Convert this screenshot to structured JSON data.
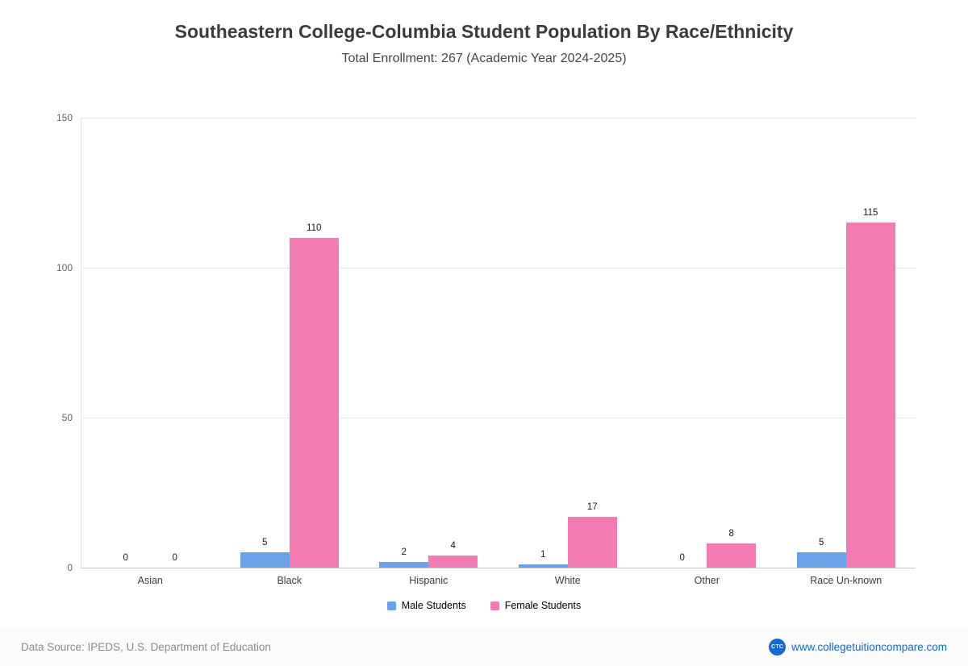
{
  "header": {
    "title": "Southeastern College-Columbia Student Population By Race/Ethnicity",
    "subtitle": "Total Enrollment: 267 (Academic Year 2024-2025)"
  },
  "chart_data": {
    "type": "bar",
    "title": "Southeastern College-Columbia Student Population By Race/Ethnicity",
    "subtitle": "Total Enrollment: 267 (Academic Year 2024-2025)",
    "categories": [
      "Asian",
      "Black",
      "Hispanic",
      "White",
      "Other",
      "Race Un-known"
    ],
    "series": [
      {
        "name": "Male Students",
        "color": "#6ba1e8",
        "values": [
          0,
          5,
          2,
          1,
          0,
          5
        ]
      },
      {
        "name": "Female Students",
        "color": "#f27cb2",
        "values": [
          0,
          110,
          4,
          17,
          8,
          115
        ]
      }
    ],
    "xlabel": "",
    "ylabel": "",
    "ylim": [
      0,
      150
    ],
    "yticks": [
      0,
      50,
      100,
      150
    ],
    "grid": true,
    "legend_position": "bottom",
    "value_labels": true
  },
  "footer": {
    "data_source": "Data Source: IPEDS, U.S. Department of Education",
    "website": "www.collegetuitioncompare.com",
    "logo_text": "CTC"
  }
}
